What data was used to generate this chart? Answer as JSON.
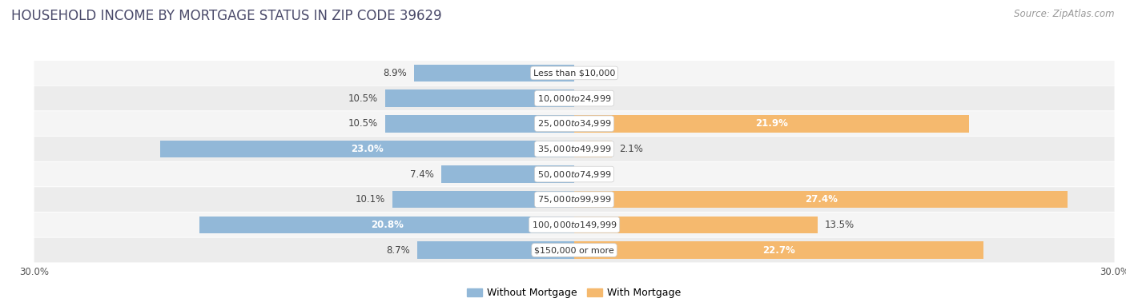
{
  "title": "HOUSEHOLD INCOME BY MORTGAGE STATUS IN ZIP CODE 39629",
  "source": "Source: ZipAtlas.com",
  "categories": [
    "Less than $10,000",
    "$10,000 to $24,999",
    "$25,000 to $34,999",
    "$35,000 to $49,999",
    "$50,000 to $74,999",
    "$75,000 to $99,999",
    "$100,000 to $149,999",
    "$150,000 or more"
  ],
  "without_mortgage": [
    8.9,
    10.5,
    10.5,
    23.0,
    7.4,
    10.1,
    20.8,
    8.7
  ],
  "with_mortgage": [
    0.0,
    0.0,
    21.9,
    2.1,
    0.0,
    27.4,
    13.5,
    22.7
  ],
  "color_without": "#92b8d8",
  "color_with": "#f5b96e",
  "xlim": 30.0,
  "bar_height": 0.68,
  "title_fontsize": 12,
  "label_fontsize": 8.5,
  "category_fontsize": 8.0,
  "source_fontsize": 8.5,
  "axis_tick_fontsize": 8.5,
  "legend_fontsize": 9,
  "row_colors": [
    "#f5f5f5",
    "#ececec"
  ]
}
